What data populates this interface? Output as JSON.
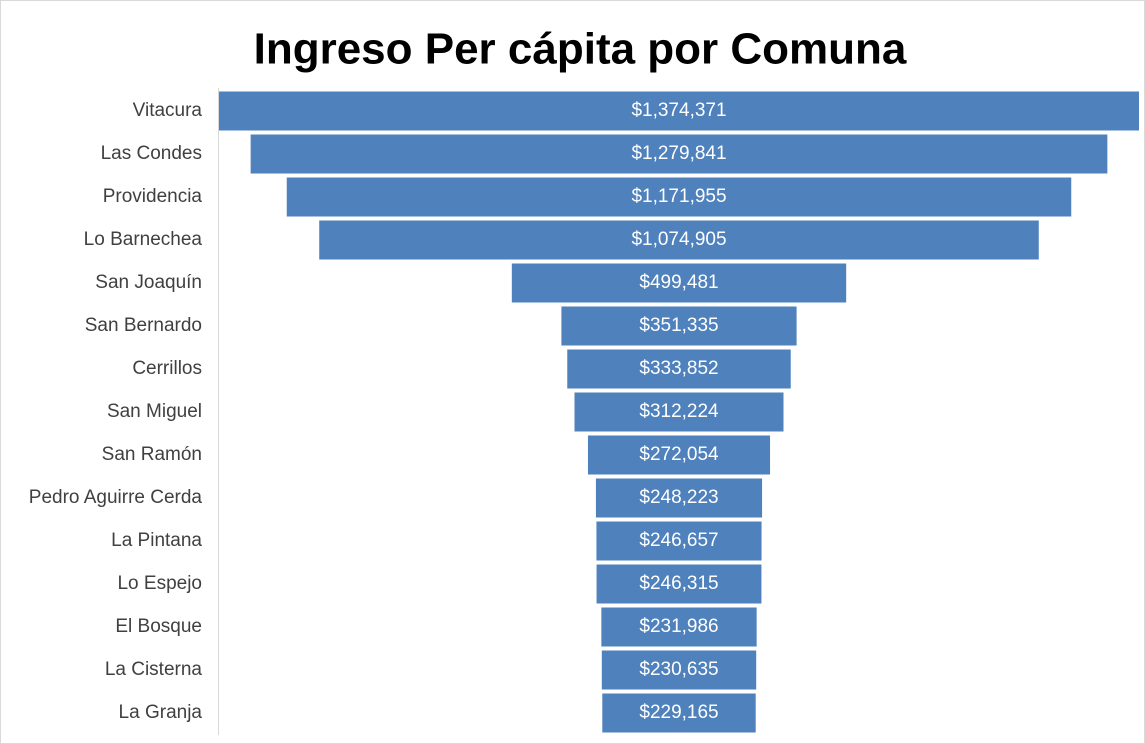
{
  "chart_data": {
    "type": "funnel",
    "title": "Ingreso Per cápita por Comuna",
    "color": "#4f81bd",
    "categories": [
      "Vitacura",
      "Las Condes",
      "Providencia",
      "Lo Barnechea",
      "San Joaquín",
      "San Bernardo",
      "Cerrillos",
      "San Miguel",
      "San Ramón",
      "Pedro Aguirre Cerda",
      "La Pintana",
      "Lo Espejo",
      "El Bosque",
      "La Cisterna",
      "La Granja"
    ],
    "values": [
      1374371,
      1279841,
      1171955,
      1074905,
      499481,
      351335,
      333852,
      312224,
      272054,
      248223,
      246657,
      246315,
      231986,
      230635,
      229165
    ],
    "value_labels": [
      "$1,374,371",
      "$1,279,841",
      "$1,171,955",
      "$1,074,905",
      "$499,481",
      "$351,335",
      "$333,852",
      "$312,224",
      "$272,054",
      "$248,223",
      "$246,657",
      "$246,315",
      "$231,986",
      "$230,635",
      "$229,165"
    ]
  }
}
